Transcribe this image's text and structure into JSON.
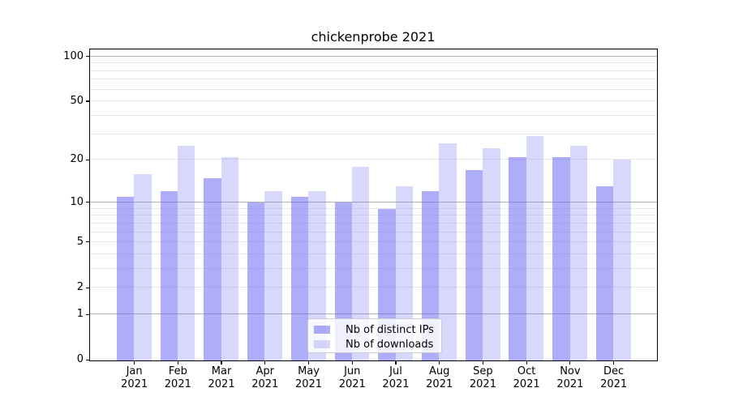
{
  "chart_data": {
    "type": "bar",
    "title": "chickenprobe 2021",
    "categories": [
      "Jan 2021",
      "Feb 2021",
      "Mar 2021",
      "Apr 2021",
      "May 2021",
      "Jun 2021",
      "Jul 2021",
      "Aug 2021",
      "Sep 2021",
      "Oct 2021",
      "Nov 2021",
      "Dec 2021"
    ],
    "x_tick_months": [
      "Jan",
      "Feb",
      "Mar",
      "Apr",
      "May",
      "Jun",
      "Jul",
      "Aug",
      "Sep",
      "Oct",
      "Nov",
      "Dec"
    ],
    "x_tick_year": "2021",
    "series": [
      {
        "name": "Nb of distinct IPs",
        "values": [
          11,
          12,
          15,
          10,
          11,
          10,
          9,
          12,
          17,
          21,
          21,
          13
        ],
        "color": "rgba(105,105,245,0.55)"
      },
      {
        "name": "Nb of downloads",
        "values": [
          16,
          25,
          21,
          12,
          12,
          18,
          13,
          26,
          24,
          29,
          25,
          20
        ],
        "color": "rgba(105,105,245,0.26)"
      }
    ],
    "y_axis": {
      "scale": "log1p",
      "ylim": [
        0,
        110
      ],
      "tick_values": [
        0,
        1,
        2,
        5,
        10,
        20,
        50,
        100
      ],
      "tick_labels": [
        "0",
        "1",
        "2",
        "5",
        "10",
        "20",
        "50",
        "100"
      ],
      "major_grid_values": [
        1,
        10,
        100
      ],
      "minor_grid_values": [
        2,
        3,
        4,
        5,
        6,
        7,
        8,
        9,
        20,
        30,
        40,
        50,
        60,
        70,
        80,
        90
      ]
    },
    "legend": {
      "position": "lower center"
    },
    "grid": "on",
    "xlabel": "",
    "ylabel": ""
  },
  "colors": {
    "bar_dark": "rgba(105,105,245,0.55)",
    "bar_light": "rgba(105,105,245,0.26)",
    "grid_major": "#b2b2b2",
    "grid_minor": "#e8e8e8",
    "spine": "#000000",
    "legend_border": "#cccccc",
    "legend_bg": "rgba(255,255,255,0.8)",
    "background": "#ffffff"
  }
}
